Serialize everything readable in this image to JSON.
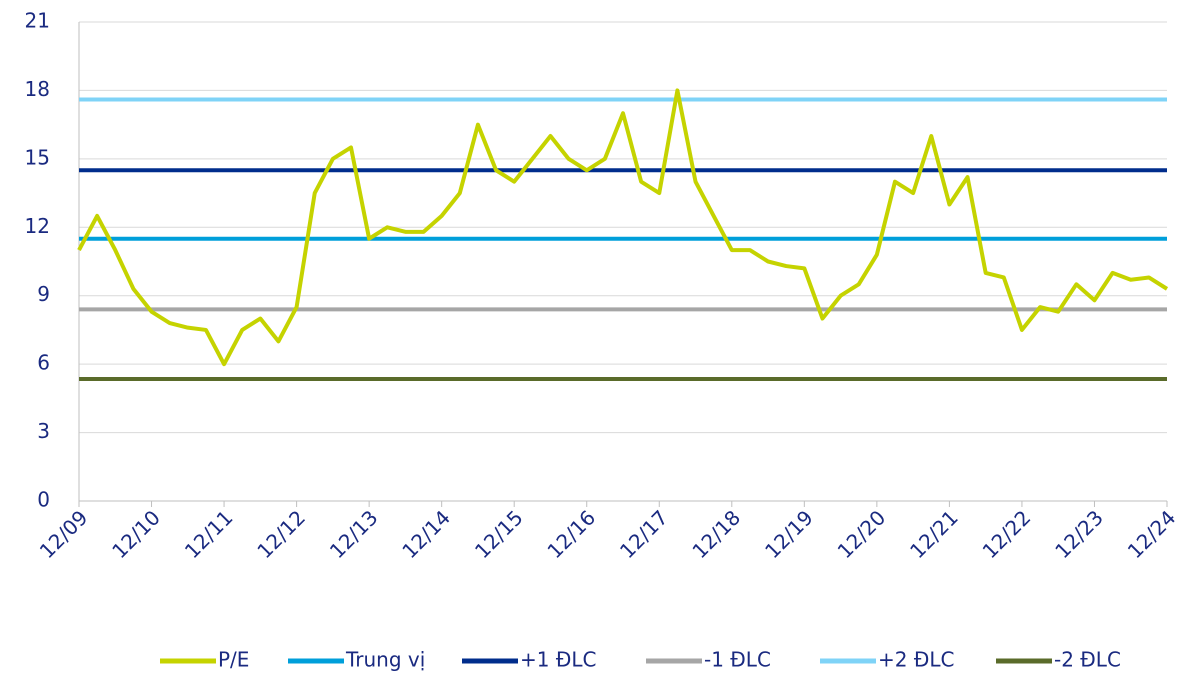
{
  "chart_data": {
    "type": "line",
    "categories": [
      "12/09",
      null,
      null,
      null,
      "12/10",
      null,
      null,
      null,
      "12/11",
      null,
      null,
      null,
      "12/12",
      null,
      null,
      null,
      "12/13",
      null,
      null,
      null,
      "12/14",
      null,
      null,
      null,
      "12/15",
      null,
      null,
      null,
      "12/16",
      null,
      null,
      null,
      "12/17",
      null,
      null,
      null,
      "12/18",
      null,
      null,
      null,
      "12/19",
      null,
      null,
      null,
      "12/20",
      null,
      null,
      null,
      "12/21",
      null,
      null,
      null,
      "12/22",
      null,
      null,
      null,
      "12/23",
      null,
      null,
      null,
      "12/24"
    ],
    "ylim": [
      0,
      21
    ],
    "yticks": [
      0,
      3,
      6,
      9,
      12,
      15,
      18,
      21
    ],
    "grid": true,
    "series": [
      {
        "name": "P/E",
        "color": "#c5d300",
        "values": [
          11,
          12.5,
          11,
          9.3,
          8.3,
          7.8,
          7.6,
          7.5,
          6,
          7.5,
          8,
          7,
          8.5,
          13.5,
          15,
          15.5,
          11.5,
          12,
          11.8,
          11.8,
          12.5,
          13.5,
          16.5,
          14.5,
          14,
          15,
          16,
          15,
          14.5,
          15,
          17,
          14,
          13.5,
          18,
          14,
          12.5,
          11,
          11,
          10.5,
          10.3,
          10.2,
          8,
          9,
          9.5,
          10.8,
          14,
          13.5,
          16,
          13,
          14.2,
          10,
          9.8,
          7.5,
          8.5,
          8.3,
          9.5,
          8.8,
          10,
          9.7,
          9.8,
          9.3
        ]
      },
      {
        "name": "Trung vị",
        "color": "#009fda",
        "values": [
          11.5,
          11.5,
          11.5,
          11.5,
          11.5,
          11.5,
          11.5,
          11.5,
          11.5,
          11.5,
          11.5,
          11.5,
          11.5,
          11.5,
          11.5,
          11.5,
          11.5,
          11.5,
          11.5,
          11.5,
          11.5,
          11.5,
          11.5,
          11.5,
          11.5,
          11.5,
          11.5,
          11.5,
          11.5,
          11.5,
          11.5,
          11.5,
          11.5,
          11.5,
          11.5,
          11.5,
          11.5,
          11.5,
          11.5,
          11.5,
          11.5,
          11.5,
          11.5,
          11.5,
          11.5,
          11.5,
          11.5,
          11.5,
          11.5,
          11.5,
          11.5,
          11.5,
          11.5,
          11.5,
          11.5,
          11.5,
          11.5,
          11.5,
          11.5,
          11.5,
          11.5
        ]
      },
      {
        "name": "+1 ĐLC",
        "color": "#002d8c",
        "values": [
          14.5,
          14.5,
          14.5,
          14.5,
          14.5,
          14.5,
          14.5,
          14.5,
          14.5,
          14.5,
          14.5,
          14.5,
          14.5,
          14.5,
          14.5,
          14.5,
          14.5,
          14.5,
          14.5,
          14.5,
          14.5,
          14.5,
          14.5,
          14.5,
          14.5,
          14.5,
          14.5,
          14.5,
          14.5,
          14.5,
          14.5,
          14.5,
          14.5,
          14.5,
          14.5,
          14.5,
          14.5,
          14.5,
          14.5,
          14.5,
          14.5,
          14.5,
          14.5,
          14.5,
          14.5,
          14.5,
          14.5,
          14.5,
          14.5,
          14.5,
          14.5,
          14.5,
          14.5,
          14.5,
          14.5,
          14.5,
          14.5,
          14.5,
          14.5,
          14.5,
          14.5
        ]
      },
      {
        "name": "-1 ĐLC",
        "color": "#a6a6a6",
        "values": [
          8.4,
          8.4,
          8.4,
          8.4,
          8.4,
          8.4,
          8.4,
          8.4,
          8.4,
          8.4,
          8.4,
          8.4,
          8.4,
          8.4,
          8.4,
          8.4,
          8.4,
          8.4,
          8.4,
          8.4,
          8.4,
          8.4,
          8.4,
          8.4,
          8.4,
          8.4,
          8.4,
          8.4,
          8.4,
          8.4,
          8.4,
          8.4,
          8.4,
          8.4,
          8.4,
          8.4,
          8.4,
          8.4,
          8.4,
          8.4,
          8.4,
          8.4,
          8.4,
          8.4,
          8.4,
          8.4,
          8.4,
          8.4,
          8.4,
          8.4,
          8.4,
          8.4,
          8.4,
          8.4,
          8.4,
          8.4,
          8.4,
          8.4,
          8.4,
          8.4,
          8.4
        ]
      },
      {
        "name": "+2 ĐLC",
        "color": "#7fd3f7",
        "values": [
          17.6,
          17.6,
          17.6,
          17.6,
          17.6,
          17.6,
          17.6,
          17.6,
          17.6,
          17.6,
          17.6,
          17.6,
          17.6,
          17.6,
          17.6,
          17.6,
          17.6,
          17.6,
          17.6,
          17.6,
          17.6,
          17.6,
          17.6,
          17.6,
          17.6,
          17.6,
          17.6,
          17.6,
          17.6,
          17.6,
          17.6,
          17.6,
          17.6,
          17.6,
          17.6,
          17.6,
          17.6,
          17.6,
          17.6,
          17.6,
          17.6,
          17.6,
          17.6,
          17.6,
          17.6,
          17.6,
          17.6,
          17.6,
          17.6,
          17.6,
          17.6,
          17.6,
          17.6,
          17.6,
          17.6,
          17.6,
          17.6,
          17.6,
          17.6,
          17.6,
          17.6
        ]
      },
      {
        "name": "-2 ĐLC",
        "color": "#5a6b2a",
        "values": [
          5.35,
          5.35,
          5.35,
          5.35,
          5.35,
          5.35,
          5.35,
          5.35,
          5.35,
          5.35,
          5.35,
          5.35,
          5.35,
          5.35,
          5.35,
          5.35,
          5.35,
          5.35,
          5.35,
          5.35,
          5.35,
          5.35,
          5.35,
          5.35,
          5.35,
          5.35,
          5.35,
          5.35,
          5.35,
          5.35,
          5.35,
          5.35,
          5.35,
          5.35,
          5.35,
          5.35,
          5.35,
          5.35,
          5.35,
          5.35,
          5.35,
          5.35,
          5.35,
          5.35,
          5.35,
          5.35,
          5.35,
          5.35,
          5.35,
          5.35,
          5.35,
          5.35,
          5.35,
          5.35,
          5.35,
          5.35,
          5.35,
          5.35,
          5.35,
          5.35,
          5.35
        ]
      }
    ]
  }
}
